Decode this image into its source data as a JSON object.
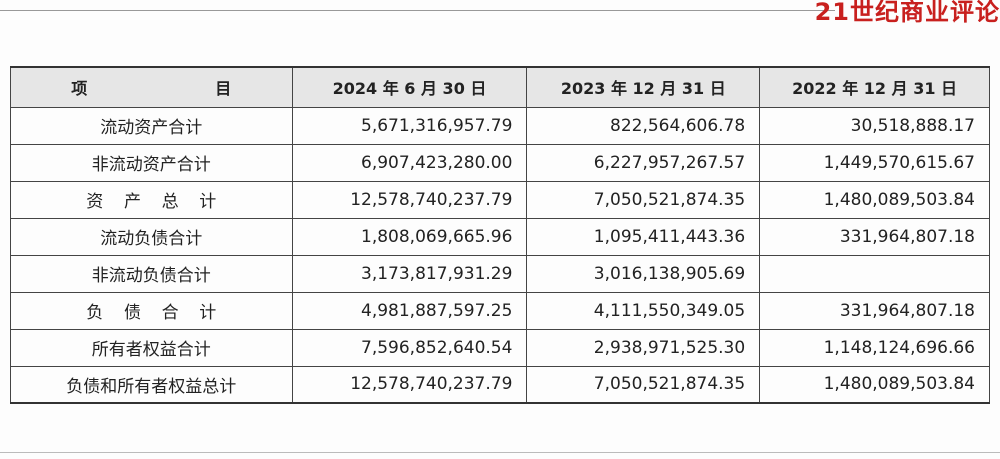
{
  "header": {
    "logo": "21世纪商业评论"
  },
  "table": {
    "columns": [
      "项 目",
      "2024 年 6 月 30 日",
      "2023 年 12 月 31 日",
      "2022 年 12 月 31 日"
    ],
    "rows": [
      [
        "流动资产合计",
        "5,671,316,957.79",
        "822,564,606.78",
        "30,518,888.17"
      ],
      [
        "非流动资产合计",
        "6,907,423,280.00",
        "6,227,957,267.57",
        "1,449,570,615.67"
      ],
      [
        "资 产 总 计",
        "12,578,740,237.79",
        "7,050,521,874.35",
        "1,480,089,503.84"
      ],
      [
        "流动负债合计",
        "1,808,069,665.96",
        "1,095,411,443.36",
        "331,964,807.18"
      ],
      [
        "非流动负债合计",
        "3,173,817,931.29",
        "3,016,138,905.69",
        null
      ],
      [
        "负 债 合 计",
        "4,981,887,597.25",
        "4,111,550,349.05",
        "331,964,807.18"
      ],
      [
        "所有者权益合计",
        "7,596,852,640.54",
        "2,938,971,525.30",
        "1,148,124,696.66"
      ],
      [
        "负债和所有者权益总计",
        "12,578,740,237.79",
        "7,050,521,874.35",
        "1,480,089,503.84"
      ]
    ]
  }
}
